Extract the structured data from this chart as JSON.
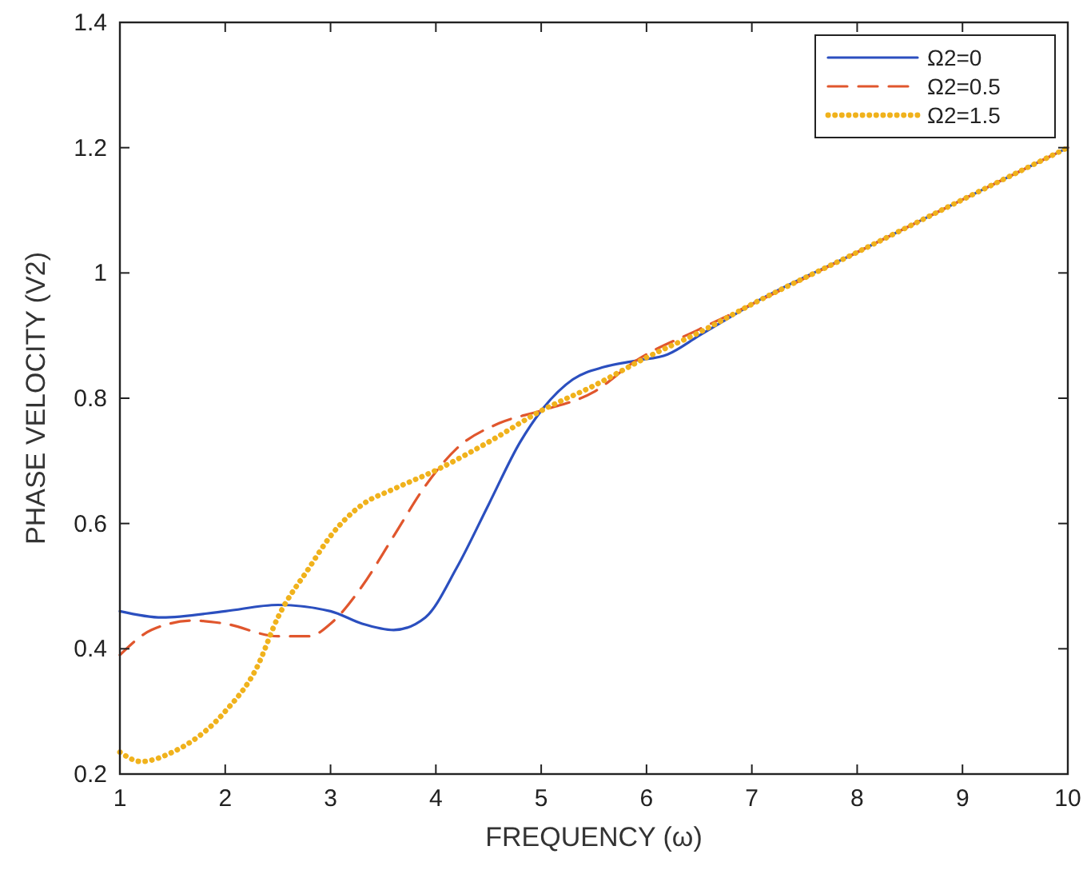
{
  "chart_data": {
    "type": "line",
    "xlabel": "FREQUENCY (ω)",
    "ylabel": "PHASE VELOCITY (V2)",
    "xlim": [
      1,
      10
    ],
    "xticks": [
      1,
      2,
      3,
      4,
      5,
      6,
      7,
      8,
      9,
      10
    ],
    "ylim": [
      0.2,
      1.4
    ],
    "yticks": [
      0.2,
      0.4,
      0.6,
      0.8,
      1,
      1.2,
      1.4
    ],
    "grid": false,
    "legend": "top right",
    "series": [
      {
        "name": "Ω2=0",
        "color": "#2b4fbf",
        "line_style": "solid",
        "x": [
          1,
          1.4,
          2,
          2.5,
          3,
          3.3,
          3.6,
          3.9,
          4.2,
          4.5,
          4.8,
          5,
          5.3,
          5.6,
          5.9,
          6.2,
          6.5,
          6.8,
          7,
          8,
          9,
          10
        ],
        "values": [
          0.46,
          0.45,
          0.46,
          0.47,
          0.46,
          0.44,
          0.43,
          0.45,
          0.53,
          0.63,
          0.73,
          0.78,
          0.83,
          0.85,
          0.86,
          0.87,
          0.9,
          0.93,
          0.95,
          1.033,
          1.117,
          1.2
        ]
      },
      {
        "name": "Ω2=0.5",
        "color": "#e0562d",
        "line_style": "dashed",
        "x": [
          1,
          1.3,
          1.7,
          2,
          2.5,
          2.8,
          3,
          3.3,
          3.6,
          3.9,
          4.2,
          4.6,
          5,
          5.5,
          5.9,
          6.5,
          7,
          8,
          9,
          10
        ],
        "values": [
          0.39,
          0.43,
          0.445,
          0.44,
          0.42,
          0.42,
          0.44,
          0.5,
          0.58,
          0.66,
          0.72,
          0.76,
          0.78,
          0.81,
          0.86,
          0.91,
          0.95,
          1.033,
          1.117,
          1.2
        ]
      },
      {
        "name": "Ω2=1.5",
        "color": "#f0b21c",
        "line_style": "dotted",
        "x": [
          1,
          1.2,
          1.5,
          2,
          2.3,
          2.5,
          2.8,
          3,
          3.3,
          3.6,
          4,
          4.5,
          5,
          5.5,
          6,
          6.5,
          7,
          8,
          9,
          10
        ],
        "values": [
          0.235,
          0.22,
          0.235,
          0.3,
          0.37,
          0.45,
          0.53,
          0.58,
          0.63,
          0.655,
          0.685,
          0.73,
          0.78,
          0.82,
          0.865,
          0.905,
          0.95,
          1.033,
          1.117,
          1.2
        ]
      }
    ]
  }
}
